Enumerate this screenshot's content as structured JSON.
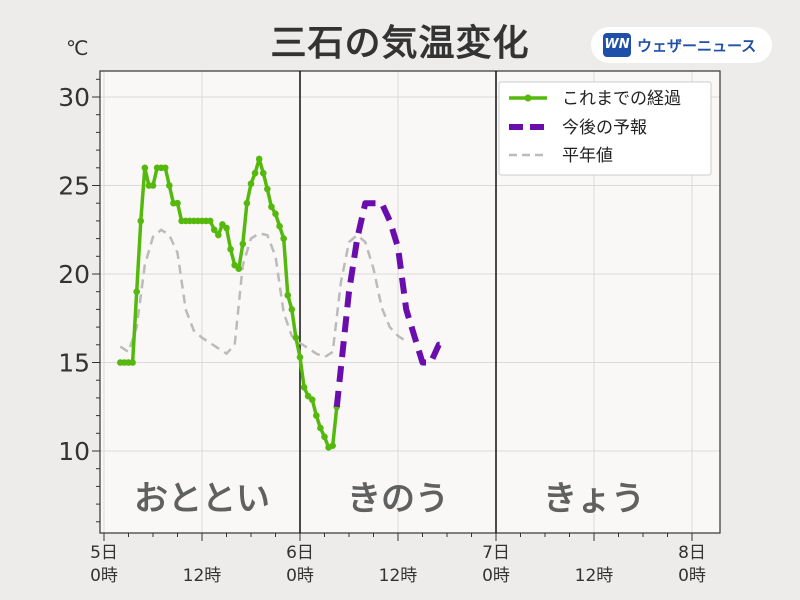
{
  "title": "三石の気温変化",
  "unit_label": "℃",
  "brand": {
    "logo": "WN",
    "name": "ウェザーニュース"
  },
  "chart_data": {
    "type": "line",
    "ylim": [
      5,
      31.5
    ],
    "yticks": [
      10,
      15,
      20,
      25,
      30
    ],
    "xlim": [
      0,
      74
    ],
    "xticks": [
      {
        "x": 0,
        "label": [
          "5日",
          "0時"
        ]
      },
      {
        "x": 12,
        "label": [
          "",
          "12時"
        ]
      },
      {
        "x": 24,
        "label": [
          "6日",
          "0時"
        ]
      },
      {
        "x": 36,
        "label": [
          "",
          "12時"
        ]
      },
      {
        "x": 48,
        "label": [
          "7日",
          "0時"
        ]
      },
      {
        "x": 60,
        "label": [
          "",
          "12時"
        ]
      },
      {
        "x": 72,
        "label": [
          "8日",
          "0時"
        ]
      }
    ],
    "day_dividers": [
      24,
      48
    ],
    "day_labels": [
      {
        "x": 12,
        "text": "おととい"
      },
      {
        "x": 36,
        "text": "きのう"
      },
      {
        "x": 60,
        "text": "きょう"
      }
    ],
    "grid": true,
    "legend_position": "top-right",
    "colors": {
      "observed": "#55b90d",
      "forecast": "#6a0dad",
      "normal": "#bbbbbb"
    },
    "series": [
      {
        "name": "これまでの経過",
        "style": "solid-markers",
        "points": [
          [
            2,
            15
          ],
          [
            2.5,
            15
          ],
          [
            3,
            15
          ],
          [
            3.5,
            15
          ],
          [
            4,
            19
          ],
          [
            4.5,
            23
          ],
          [
            5,
            26
          ],
          [
            5.5,
            25
          ],
          [
            6,
            25
          ],
          [
            6.5,
            26
          ],
          [
            7,
            26
          ],
          [
            7.5,
            26
          ],
          [
            8,
            25
          ],
          [
            8.5,
            24
          ],
          [
            9,
            24
          ],
          [
            9.5,
            23
          ],
          [
            10,
            23
          ],
          [
            10.5,
            23
          ],
          [
            11,
            23
          ],
          [
            11.5,
            23
          ],
          [
            12,
            23
          ],
          [
            12.5,
            23
          ],
          [
            13,
            23
          ],
          [
            13.5,
            22.5
          ],
          [
            14,
            22.2
          ],
          [
            14.5,
            22.8
          ],
          [
            15,
            22.6
          ],
          [
            15.5,
            21.4
          ],
          [
            16,
            20.5
          ],
          [
            16.5,
            20.3
          ],
          [
            17,
            21.7
          ],
          [
            17.5,
            24
          ],
          [
            18,
            25.1
          ],
          [
            18.5,
            25.7
          ],
          [
            19,
            26.5
          ],
          [
            19.5,
            25.7
          ],
          [
            20,
            24.8
          ],
          [
            20.5,
            23.8
          ],
          [
            21,
            23.4
          ],
          [
            21.5,
            22.7
          ],
          [
            22,
            22
          ],
          [
            22.5,
            18.8
          ],
          [
            23,
            18
          ],
          [
            23.5,
            16.4
          ],
          [
            24,
            15.3
          ],
          [
            24.5,
            13.6
          ],
          [
            25,
            13.1
          ],
          [
            25.5,
            12.9
          ],
          [
            26,
            12
          ],
          [
            26.5,
            11.3
          ],
          [
            27,
            10.8
          ],
          [
            27.5,
            10.2
          ],
          [
            28,
            10.3
          ],
          [
            28.5,
            12.5
          ]
        ]
      },
      {
        "name": "今後の予報",
        "style": "dashed",
        "points": [
          [
            28.5,
            12.5
          ],
          [
            30,
            19
          ],
          [
            31,
            22
          ],
          [
            32,
            24
          ],
          [
            33,
            24
          ],
          [
            34,
            24
          ],
          [
            35,
            23
          ],
          [
            36,
            21.5
          ],
          [
            37,
            18
          ],
          [
            38,
            16.5
          ],
          [
            39,
            15
          ],
          [
            40,
            15
          ],
          [
            41,
            16
          ],
          [
            42,
            16
          ]
        ]
      },
      {
        "name": "平年値",
        "style": "dashed",
        "points": [
          [
            2,
            15.9
          ],
          [
            3,
            15.6
          ],
          [
            4,
            17
          ],
          [
            5,
            20.5
          ],
          [
            6,
            22.1
          ],
          [
            7,
            22.5
          ],
          [
            8,
            22.2
          ],
          [
            9,
            21.2
          ],
          [
            10,
            18
          ],
          [
            11,
            16.8
          ],
          [
            12,
            16.4
          ],
          [
            13,
            16.1
          ],
          [
            14,
            15.8
          ],
          [
            15,
            15.5
          ],
          [
            16,
            16
          ],
          [
            17,
            20.5
          ],
          [
            18,
            22
          ],
          [
            19,
            22.3
          ],
          [
            20,
            22.2
          ],
          [
            21,
            21
          ],
          [
            22,
            17.8
          ],
          [
            23,
            16.5
          ],
          [
            24,
            16.1
          ],
          [
            25,
            15.8
          ],
          [
            26,
            15.5
          ],
          [
            27,
            15.3
          ],
          [
            28,
            15.6
          ],
          [
            29,
            19.5
          ],
          [
            30,
            21.8
          ],
          [
            31,
            22.2
          ],
          [
            32,
            21.8
          ],
          [
            33,
            20.3
          ],
          [
            34,
            18.1
          ],
          [
            35,
            17
          ],
          [
            36,
            16.5
          ],
          [
            37,
            16.2
          ]
        ]
      }
    ]
  }
}
